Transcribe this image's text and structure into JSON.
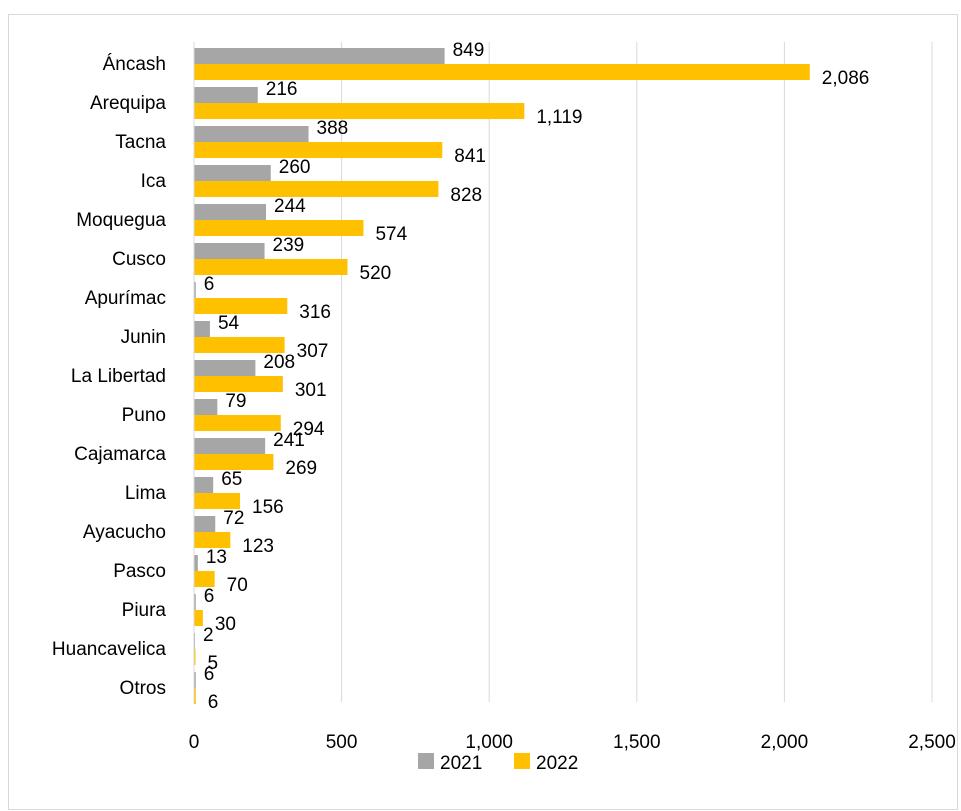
{
  "chart_data": {
    "type": "bar",
    "orientation": "horizontal",
    "categories": [
      "Áncash",
      "Arequipa",
      "Tacna",
      "Ica",
      "Moquegua",
      "Cusco",
      "Apurímac",
      "Junin",
      "La Libertad",
      "Puno",
      "Cajamarca",
      "Lima",
      "Ayacucho",
      "Pasco",
      "Piura",
      "Huancavelica",
      "Otros"
    ],
    "series": [
      {
        "name": "2021",
        "color": "#a6a6a6",
        "values": [
          849,
          216,
          388,
          260,
          244,
          239,
          6,
          54,
          208,
          79,
          241,
          65,
          72,
          13,
          6,
          2,
          6
        ],
        "labels": [
          "849",
          "216",
          "388",
          "260",
          "244",
          "239",
          "6",
          "54",
          "208",
          "79",
          "241",
          "65",
          "72",
          "13",
          "6",
          "2",
          "6"
        ]
      },
      {
        "name": "2022",
        "color": "#ffc000",
        "values": [
          2086,
          1119,
          841,
          828,
          574,
          520,
          316,
          307,
          301,
          294,
          269,
          156,
          123,
          70,
          30,
          5,
          6
        ],
        "labels": [
          "2,086",
          "1,119",
          "841",
          "828",
          "574",
          "520",
          "316",
          "307",
          "301",
          "294",
          "269",
          "156",
          "123",
          "70",
          "30",
          "5",
          "6"
        ]
      }
    ],
    "xlim": [
      0,
      2500
    ],
    "ticks": [
      0,
      500,
      1000,
      1500,
      2000,
      2500
    ],
    "tick_labels": [
      "0",
      "500",
      "1,000",
      "1,500",
      "2,000",
      "2,500"
    ],
    "grid": "vertical",
    "legend": "bottom",
    "title": "",
    "xlabel": "",
    "ylabel": ""
  }
}
